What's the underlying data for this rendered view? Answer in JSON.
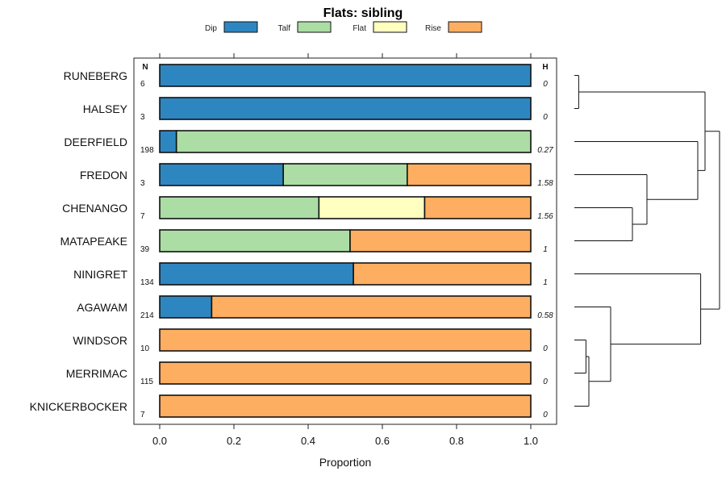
{
  "chart_data": {
    "type": "bar",
    "stacked": true,
    "orientation": "horizontal",
    "title": "Flats: sibling",
    "xlabel": "Proportion",
    "xlim": [
      0,
      1
    ],
    "xticks": [
      "0.0",
      "0.2",
      "0.4",
      "0.6",
      "0.8",
      "1.0"
    ],
    "n_header": "N",
    "h_header": "H",
    "legend": [
      {
        "name": "Dip",
        "color": "#2e86c1"
      },
      {
        "name": "Talf",
        "color": "#abdda4"
      },
      {
        "name": "Flat",
        "color": "#ffffbf"
      },
      {
        "name": "Rise",
        "color": "#fdae61"
      }
    ],
    "categories": [
      "RUNEBERG",
      "HALSEY",
      "DEERFIELD",
      "FREDON",
      "CHENANGO",
      "MATAPEAKE",
      "NINIGRET",
      "AGAWAM",
      "WINDSOR",
      "MERRIMAC",
      "KNICKERBOCKER"
    ],
    "n": [
      "6",
      "3",
      "198",
      "3",
      "7",
      "39",
      "134",
      "214",
      "10",
      "115",
      "7"
    ],
    "h": [
      "0",
      "0",
      "0.27",
      "1.58",
      "1.56",
      "1",
      "1",
      "0.58",
      "0",
      "0",
      "0"
    ],
    "series": [
      {
        "name": "Dip",
        "values": [
          1,
          1,
          0.045,
          0.333,
          0,
          0,
          0.522,
          0.14,
          0,
          0,
          0
        ]
      },
      {
        "name": "Talf",
        "values": [
          0,
          0,
          0.955,
          0.334,
          0.429,
          0.513,
          0,
          0,
          0,
          0,
          0
        ]
      },
      {
        "name": "Flat",
        "values": [
          0,
          0,
          0,
          0,
          0.285,
          0,
          0,
          0,
          0,
          0,
          0
        ]
      },
      {
        "name": "Rise",
        "values": [
          0,
          0,
          0,
          0.333,
          0.286,
          0.487,
          0.478,
          0.86,
          1,
          1,
          1
        ]
      }
    ],
    "dendrogram": [
      {
        "leaves": [
          0,
          1
        ],
        "height": 0.03
      },
      {
        "leaves": [
          4,
          5
        ],
        "height": 0.4
      },
      {
        "leaves": [
          3,
          4,
          5
        ],
        "height": 0.5
      },
      {
        "leaves": [
          2,
          3,
          4,
          5
        ],
        "height": 0.85
      },
      {
        "leaves": [
          8,
          9
        ],
        "height": 0.08
      },
      {
        "leaves": [
          8,
          9,
          10
        ],
        "height": 0.1
      },
      {
        "leaves": [
          7,
          8,
          9,
          10
        ],
        "height": 0.25
      },
      {
        "leaves": [
          6,
          7,
          8,
          9,
          10
        ],
        "height": 0.87
      },
      {
        "leaves": [
          0,
          1,
          2,
          3,
          4,
          5
        ],
        "height": 0.9
      },
      {
        "leaves": [
          0,
          1,
          2,
          3,
          4,
          5,
          6,
          7,
          8,
          9,
          10
        ],
        "height": 1.0
      }
    ]
  }
}
